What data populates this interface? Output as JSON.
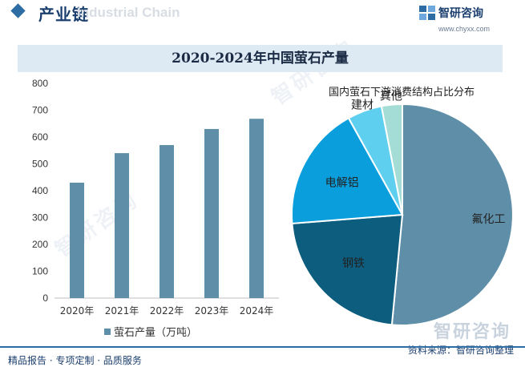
{
  "header": {
    "title": "产业链",
    "watermark": "Industrial Chain",
    "brand_name": "智研咨询",
    "brand_url": "www.chyxx.com"
  },
  "chart_title": "2020-2024年中国萤石产量",
  "chart_data": [
    {
      "type": "bar",
      "categories": [
        "2020年",
        "2021年",
        "2022年",
        "2023年",
        "2024年"
      ],
      "series": [
        {
          "name": "萤石产量（万吨）",
          "values": [
            430,
            540,
            570,
            630,
            668
          ]
        }
      ],
      "ylim": [
        0,
        800
      ],
      "yticks": [
        0,
        100,
        200,
        300,
        400,
        500,
        600,
        700,
        800
      ],
      "grid": false,
      "legend": "bottom",
      "color": "#5f8fa8"
    },
    {
      "type": "pie",
      "title": "国内萤石下游消费结构占比分布",
      "labels": [
        "氟化工",
        "钢铁",
        "电解铝",
        "建材",
        "其他"
      ],
      "values": [
        51,
        22,
        18,
        5,
        3
      ],
      "colors": [
        "#5f8fa8",
        "#0d5d7e",
        "#0a9fdc",
        "#5fcff0",
        "#a4ddd6"
      ]
    }
  ],
  "footer": {
    "tagline": "精品报告 · 专项定制 · 品质服务",
    "source": "资料来源：智研咨询整理",
    "watermark_brand": "智研咨询"
  }
}
